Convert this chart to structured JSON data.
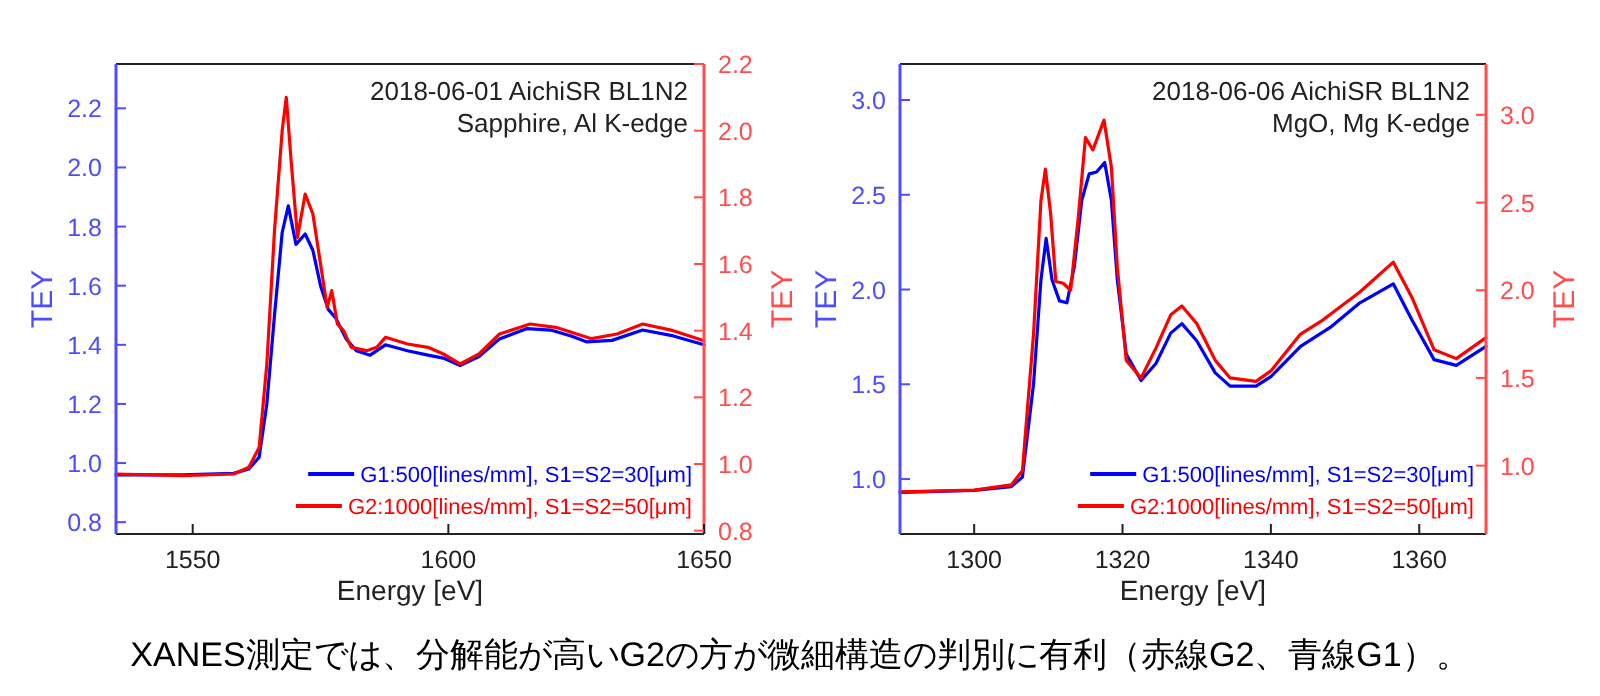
{
  "chart_data": [
    {
      "type": "line",
      "xlabel": "Energy [eV]",
      "ylabel": "TEY",
      "y2label": "TEY",
      "annotations": [
        "2018-06-01 AichiSR BL1N2",
        "Sapphire, Al K-edge"
      ],
      "xlim": [
        1535,
        1650
      ],
      "xticks": [
        1550,
        1600,
        1650
      ],
      "ylim": [
        0.76,
        2.35
      ],
      "yticks": [
        {
          "value": 0.8,
          "label": "0.8"
        },
        {
          "value": 1.0,
          "label": "1.0"
        },
        {
          "value": 1.2,
          "label": "1.2"
        },
        {
          "value": 1.4,
          "label": "1.4"
        },
        {
          "value": 1.6,
          "label": "1.6"
        },
        {
          "value": 1.8,
          "label": "1.8"
        },
        {
          "value": 2.0,
          "label": "2.0"
        },
        {
          "value": 2.2,
          "label": "2.2"
        }
      ],
      "y2lim": [
        0.79,
        2.2
      ],
      "y2ticks": [
        {
          "value": 0.8,
          "label": "0.8"
        },
        {
          "value": 1.0,
          "label": "1.0"
        },
        {
          "value": 1.2,
          "label": "1.2"
        },
        {
          "value": 1.4,
          "label": "1.4"
        },
        {
          "value": 1.6,
          "label": "1.6"
        },
        {
          "value": 1.8,
          "label": "1.8"
        },
        {
          "value": 2.0,
          "label": "2.0"
        },
        {
          "value": 2.2,
          "label": "2.2"
        }
      ],
      "grid": false,
      "legend": "bottom right",
      "series": [
        {
          "name": "G1:500[lines/mm], S1=S2=30[μm]",
          "color": "#0000ff",
          "axis": "y",
          "x": [
            1535,
            1548,
            1558,
            1561,
            1563,
            1564.5,
            1566,
            1567.5,
            1568.7,
            1570.2,
            1572,
            1573.5,
            1575,
            1576.5,
            1578,
            1580,
            1582,
            1584.7,
            1587.7,
            1592,
            1596,
            1599,
            1602.3,
            1606,
            1610,
            1615.4,
            1620,
            1624,
            1627,
            1632,
            1638,
            1644,
            1650
          ],
          "values": [
            0.96,
            0.96,
            0.965,
            0.98,
            1.02,
            1.2,
            1.5,
            1.78,
            1.87,
            1.74,
            1.775,
            1.72,
            1.6,
            1.52,
            1.49,
            1.42,
            1.38,
            1.365,
            1.4,
            1.38,
            1.365,
            1.355,
            1.33,
            1.36,
            1.42,
            1.455,
            1.45,
            1.43,
            1.41,
            1.415,
            1.45,
            1.43,
            1.4
          ]
        },
        {
          "name": "G2:1000[lines/mm], S1=S2=50[μm]",
          "color": "#ff0000",
          "axis": "y2",
          "x": [
            1535,
            1548,
            1558,
            1561,
            1563,
            1564.5,
            1566,
            1567.5,
            1568.3,
            1569.3,
            1570.5,
            1572,
            1573.5,
            1575,
            1576.3,
            1577.2,
            1578.3,
            1579.5,
            1581,
            1584,
            1586,
            1587.7,
            1592,
            1596,
            1599,
            1602.3,
            1606,
            1610,
            1616,
            1621,
            1628,
            1633,
            1638,
            1644,
            1650
          ],
          "values": [
            0.97,
            0.965,
            0.97,
            0.99,
            1.05,
            1.3,
            1.7,
            2.0,
            2.1,
            1.9,
            1.68,
            1.81,
            1.75,
            1.6,
            1.47,
            1.52,
            1.42,
            1.4,
            1.35,
            1.34,
            1.35,
            1.38,
            1.36,
            1.35,
            1.33,
            1.3,
            1.33,
            1.39,
            1.42,
            1.41,
            1.376,
            1.39,
            1.42,
            1.4,
            1.37
          ]
        }
      ]
    },
    {
      "type": "line",
      "xlabel": "Energy [eV]",
      "ylabel": "TEY",
      "y2label": "TEY",
      "annotations": [
        "2018-06-06 AichiSR BL1N2",
        "MgO, Mg K-edge",
        "XANES測定では、分解能が高いG2の方が微細構造の判別に有利（赤線G2、青線G1）。"
      ],
      "xlim": [
        1290,
        1369
      ],
      "xticks": [
        1300,
        1320,
        1340,
        1360
      ],
      "ylim": [
        0.71,
        3.19
      ],
      "yticks": [
        {
          "value": 1.0,
          "label": "1.0"
        },
        1.5,
        {
          "value": 2.0,
          "label": "2.0"
        },
        2.5,
        {
          "value": 3.0,
          "label": "3.0"
        }
      ],
      "y2lim": [
        0.61,
        3.29
      ],
      "y2ticks": [
        {
          "value": 1.0,
          "label": "1.0"
        },
        1.5,
        {
          "value": 2.0,
          "label": "2.0"
        },
        2.5,
        {
          "value": 3.0,
          "label": "3.0"
        }
      ],
      "grid": false,
      "legend": "bottom right",
      "series": [
        {
          "name": "G1:500[lines/mm], S1=S2=30[μm]",
          "color": "#0000ff",
          "axis": "y",
          "x": [
            1290,
            1300,
            1305,
            1306.5,
            1308,
            1309,
            1309.7,
            1310.5,
            1311.5,
            1312.5,
            1313.5,
            1314.5,
            1315.5,
            1316.5,
            1317.6,
            1318.5,
            1319.3,
            1320.5,
            1322.5,
            1324.5,
            1326.5,
            1328,
            1330,
            1332.5,
            1334.5,
            1338,
            1340,
            1344,
            1348,
            1352,
            1356.5,
            1359,
            1362,
            1365,
            1369
          ],
          "values": [
            0.93,
            0.94,
            0.96,
            1.01,
            1.5,
            2.05,
            2.27,
            2.05,
            1.94,
            1.93,
            2.12,
            2.47,
            2.61,
            2.62,
            2.67,
            2.47,
            2.05,
            1.66,
            1.52,
            1.61,
            1.77,
            1.82,
            1.73,
            1.56,
            1.49,
            1.49,
            1.54,
            1.7,
            1.8,
            1.93,
            2.03,
            1.84,
            1.63,
            1.6,
            1.7
          ]
        },
        {
          "name": "G2:1000[lines/mm], S1=S2=50[μm]",
          "color": "#ff0000",
          "axis": "y2",
          "x": [
            1290,
            1300,
            1305,
            1306.5,
            1308,
            1309,
            1309.6,
            1310.3,
            1311,
            1312,
            1313,
            1314,
            1315,
            1316,
            1317.5,
            1318.5,
            1319.3,
            1320.5,
            1322.5,
            1324.5,
            1326.5,
            1328,
            1330,
            1332.5,
            1334.5,
            1338,
            1340,
            1344,
            1347,
            1352,
            1356.5,
            1359,
            1362,
            1365,
            1369
          ],
          "values": [
            0.85,
            0.86,
            0.89,
            0.97,
            1.75,
            2.51,
            2.69,
            2.44,
            2.05,
            2.04,
            2.0,
            2.4,
            2.87,
            2.8,
            2.97,
            2.7,
            2.13,
            1.6,
            1.5,
            1.67,
            1.86,
            1.91,
            1.81,
            1.6,
            1.5,
            1.48,
            1.54,
            1.75,
            1.83,
            1.99,
            2.16,
            1.96,
            1.66,
            1.61,
            1.73
          ]
        }
      ]
    }
  ]
}
